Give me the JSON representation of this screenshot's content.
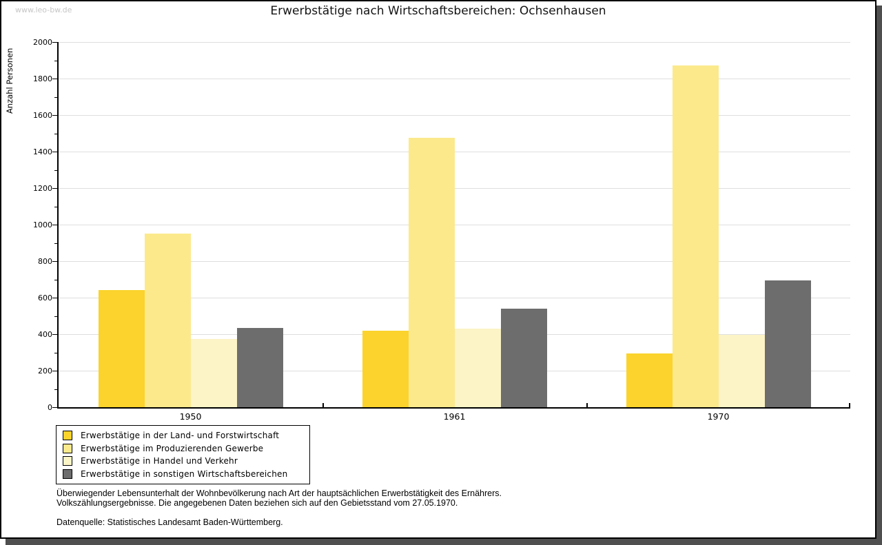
{
  "watermark": "www.leo-bw.de",
  "header": {
    "title": "Erwerbstätige nach Wirtschaftsbereichen: Ochsenhausen"
  },
  "chart_data": {
    "type": "bar",
    "title": "Erwerbstätige nach Wirtschaftsbereichen: Ochsenhausen",
    "xlabel": "",
    "ylabel": "Anzahl Personen",
    "ylim": [
      0,
      2000
    ],
    "ytick_step": 200,
    "ytick_minor_step": 100,
    "grid": true,
    "legend_position": "bottom-left",
    "categories": [
      "1950",
      "1961",
      "1970"
    ],
    "series": [
      {
        "name": "Erwerbstätige in der Land- und Forstwirtschaft",
        "color": "#FBD32C",
        "values": [
          640,
          420,
          295
        ]
      },
      {
        "name": "Erwerbstätige im Produzierenden Gewerbe",
        "color": "#FBE98C",
        "values": [
          950,
          1475,
          1870
        ]
      },
      {
        "name": "Erwerbstätige in Handel und Verkehr",
        "color": "#FCF4C6",
        "values": [
          375,
          430,
          395
        ]
      },
      {
        "name": "Erwerbstätige in sonstigen Wirtschaftsbereichen",
        "color": "#6D6D6D",
        "values": [
          435,
          540,
          695
        ]
      }
    ]
  },
  "footnotes": [
    "Überwiegender Lebensunterhalt der Wohnbevölkerung nach Art der hauptsächlichen Erwerbstätigkeit des Ernährers.",
    "Volkszählungsergebnisse. Die angegebenen Daten beziehen sich auf den Gebietsstand vom 27.05.1970."
  ],
  "source": "Datenquelle: Statistisches Landesamt Baden-Württemberg.",
  "colors": {
    "grid": "#DEDEDE",
    "axis": "#000000",
    "watermark": "#C6C6C6",
    "frame_shadow": "#4F4F4F"
  }
}
